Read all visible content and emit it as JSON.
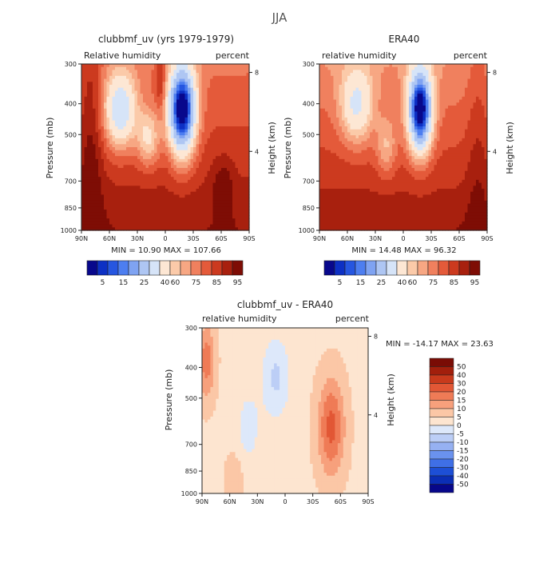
{
  "figure": {
    "title": "JJA"
  },
  "palette": {
    "sequential": [
      "#08088c",
      "#0d30c4",
      "#2656e0",
      "#4d7ef0",
      "#7fa3f2",
      "#aec6f3",
      "#d6e4f8",
      "#fde7d4",
      "#fbcaa9",
      "#f7a783",
      "#f0805e",
      "#e45a3a",
      "#cc3a1f",
      "#a8200e",
      "#7e0d05"
    ],
    "diverging": [
      "#07078a",
      "#0b2eb5",
      "#1d4fd6",
      "#3f6fe6",
      "#6a92ee",
      "#96b1f2",
      "#bccef6",
      "#dde8fa",
      "#fde5d0",
      "#fbc7a6",
      "#f7a07c",
      "#ef7b56",
      "#e25735",
      "#c83a1c",
      "#a21f0c",
      "#7a0c05"
    ]
  },
  "panels": [
    {
      "id": "model",
      "title": "clubbmf_uv (yrs 1979-1979)",
      "left_label": "Relative humidity",
      "right_label": "percent",
      "stats_text": "MIN =   10.90   MAX =  107.66",
      "y_axis_label": "Pressure (mb)",
      "y2_axis_label": "Height (km)",
      "colorbar_labels": [
        "5",
        "15",
        "25",
        "40",
        "60",
        "75",
        "85",
        "95"
      ]
    },
    {
      "id": "era40",
      "title": "ERA40",
      "left_label": "relative humidity",
      "right_label": "percent",
      "stats_text": "MIN =   14.48   MAX =   96.32",
      "y_axis_label": "Pressure (mb)",
      "y2_axis_label": "Height (km)",
      "colorbar_labels": [
        "5",
        "15",
        "25",
        "40",
        "60",
        "75",
        "85",
        "95"
      ]
    },
    {
      "id": "diff",
      "title": "clubbmf_uv - ERA40",
      "left_label": "relative humidity",
      "right_label": "percent",
      "stats_text": "MIN = -14.17   MAX =  23.63",
      "y_axis_label": "Pressure (mb)",
      "y2_axis_label": "Height (km)",
      "colorbar_labels": [
        "50",
        "40",
        "30",
        "20",
        "15",
        "10",
        "5",
        "0",
        "-5",
        "-10",
        "-15",
        "-20",
        "-30",
        "-40",
        "-50"
      ]
    }
  ],
  "chart_data": [
    {
      "type": "heatmap",
      "title": "clubbmf_uv (yrs 1979-1979)",
      "xlabel": "",
      "ylabel": "Pressure (mb)",
      "y2label": "Height (km)",
      "x_ticks": [
        "90N",
        "60N",
        "30N",
        "0",
        "30S",
        "60S",
        "90S"
      ],
      "x_values": [
        90,
        60,
        30,
        0,
        -30,
        -60,
        -90
      ],
      "y_ticks": [
        300,
        400,
        500,
        700,
        850,
        1000
      ],
      "y_scale": "log",
      "ylim": [
        1000,
        300
      ],
      "y2_ticks": [
        4,
        8
      ],
      "levels": [
        5,
        10,
        15,
        20,
        25,
        30,
        40,
        50,
        60,
        65,
        70,
        75,
        80,
        85,
        90,
        95
      ],
      "units": "percent",
      "min": 10.9,
      "max": 107.66
    },
    {
      "type": "heatmap",
      "title": "ERA40",
      "xlabel": "",
      "ylabel": "Pressure (mb)",
      "y2label": "Height (km)",
      "x_ticks": [
        "90N",
        "60N",
        "30N",
        "0",
        "30S",
        "60S",
        "90S"
      ],
      "x_values": [
        90,
        60,
        30,
        0,
        -30,
        -60,
        -90
      ],
      "y_ticks": [
        300,
        400,
        500,
        700,
        850,
        1000
      ],
      "y_scale": "log",
      "ylim": [
        1000,
        300
      ],
      "y2_ticks": [
        4,
        8
      ],
      "levels": [
        5,
        10,
        15,
        20,
        25,
        30,
        40,
        50,
        60,
        65,
        70,
        75,
        80,
        85,
        90,
        95
      ],
      "units": "percent",
      "min": 14.48,
      "max": 96.32
    },
    {
      "type": "heatmap",
      "title": "clubbmf_uv - ERA40",
      "xlabel": "",
      "ylabel": "Pressure (mb)",
      "y2label": "Height (km)",
      "x_ticks": [
        "90N",
        "60N",
        "30N",
        "0",
        "30S",
        "60S",
        "90S"
      ],
      "x_values": [
        90,
        60,
        30,
        0,
        -30,
        -60,
        -90
      ],
      "y_ticks": [
        300,
        400,
        500,
        700,
        850,
        1000
      ],
      "y_scale": "log",
      "ylim": [
        1000,
        300
      ],
      "y2_ticks": [
        4,
        8
      ],
      "levels": [
        -50,
        -40,
        -30,
        -20,
        -15,
        -10,
        -5,
        0,
        5,
        10,
        15,
        20,
        30,
        40,
        50
      ],
      "units": "percent",
      "min": -14.17,
      "max": 23.63
    }
  ]
}
